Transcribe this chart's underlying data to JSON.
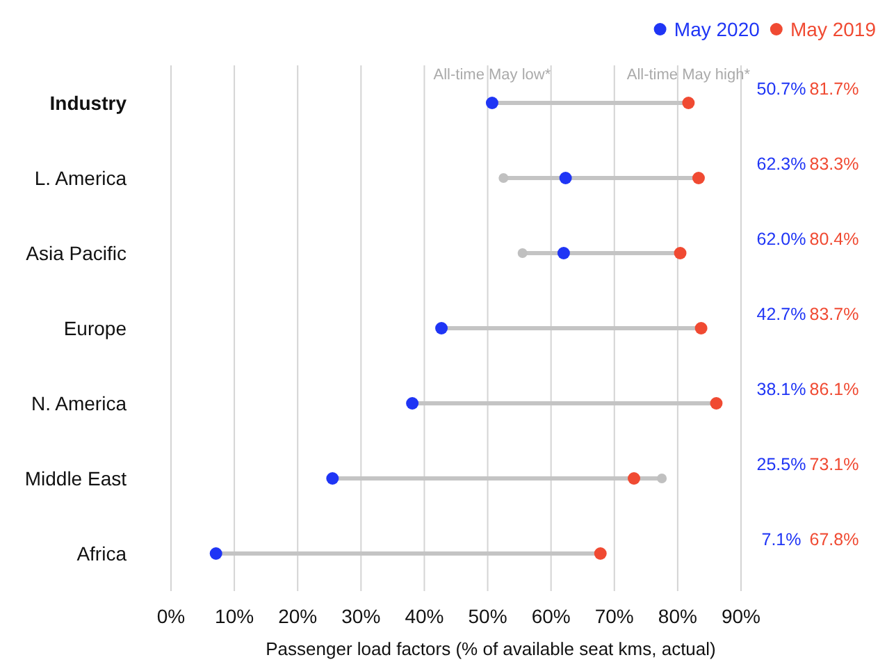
{
  "chart_data": {
    "type": "scatter",
    "orientation": "horizontal",
    "xlabel": "Passenger load factors (% of available seat kms, actual)",
    "categories": [
      "Industry",
      "L. America",
      "Asia Pacific",
      "Europe",
      "N. America",
      "Middle East",
      "Africa"
    ],
    "series": [
      {
        "color": "#c0c0c0",
        "values": [
          null,
          52.5,
          55.5,
          null,
          null,
          77.5,
          null
        ]
      },
      {
        "name": "May 2020",
        "color": "#1f35f5",
        "values": [
          50.7,
          62.3,
          62.0,
          42.7,
          38.1,
          25.5,
          7.1
        ],
        "value_labels": [
          "50.7%",
          "62.3%",
          "62.0%",
          "42.7%",
          "38.1%",
          "25.5%",
          "7.1%"
        ]
      },
      {
        "name": "May 2019",
        "color": "#f04a32",
        "values": [
          81.7,
          83.3,
          80.4,
          83.7,
          86.1,
          73.1,
          67.8
        ],
        "value_labels": [
          "81.7%",
          "83.3%",
          "80.4%",
          "83.7%",
          "86.1%",
          "73.1%",
          "67.8%"
        ]
      }
    ],
    "xlim": [
      0,
      90
    ],
    "xticks": [
      {
        "value": 0,
        "label": "0%"
      },
      {
        "value": 10,
        "label": "10%"
      },
      {
        "value": 20,
        "label": "20%"
      },
      {
        "value": 30,
        "label": "30%"
      },
      {
        "value": 40,
        "label": "40%"
      },
      {
        "value": 50,
        "label": "50%"
      },
      {
        "value": 60,
        "label": "60%"
      },
      {
        "value": 70,
        "label": "70%"
      },
      {
        "value": 80,
        "label": "80%"
      },
      {
        "value": 90,
        "label": "90%"
      }
    ],
    "annotations": [
      "All-time May low*",
      "All-time May high*"
    ],
    "grid": "x",
    "legend": "top right",
    "marker": "circle"
  }
}
